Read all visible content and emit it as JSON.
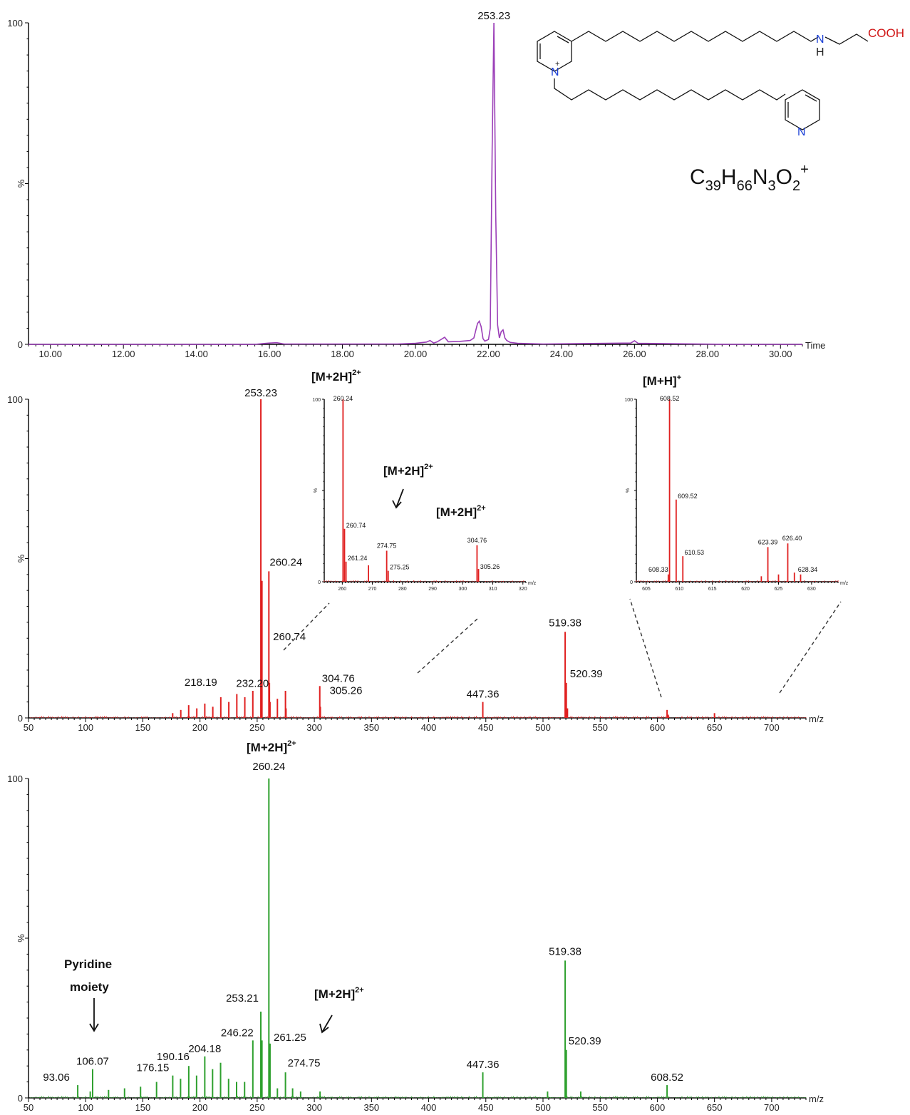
{
  "chart_data": [
    {
      "id": "tic",
      "type": "line",
      "title": "",
      "xlabel": "Time",
      "ylabel": "%",
      "xlim": [
        9.4,
        30.6
      ],
      "ylim": [
        0,
        100
      ],
      "x_ticks": [
        "10.00",
        "12.00",
        "14.00",
        "16.00",
        "18.00",
        "20.00",
        "22.00",
        "24.00",
        "26.00",
        "28.00",
        "30.00"
      ],
      "y_ticks": [
        "0",
        "100"
      ],
      "color": "#9b3fb8",
      "series": [
        {
          "x": [
            9.4,
            15.6,
            15.8,
            16.0,
            16.2,
            16.4,
            19.5,
            20.0,
            20.3,
            20.4,
            20.5,
            20.6,
            20.7,
            20.8,
            20.9,
            21.2,
            21.5,
            21.6,
            21.7,
            21.75,
            21.8,
            21.85,
            21.9,
            22.0,
            22.05,
            22.1,
            22.15,
            22.2,
            22.25,
            22.3,
            22.35,
            22.4,
            22.45,
            22.5,
            22.6,
            22.8,
            23.5,
            25.9,
            26.0,
            26.1,
            28.5,
            30.6
          ],
          "y": [
            0,
            0,
            0.2,
            0.4,
            0.5,
            0.1,
            0.1,
            0.3,
            0.7,
            1.2,
            0.4,
            0.8,
            1.5,
            2.2,
            0.8,
            0.9,
            1.2,
            2.0,
            6.5,
            7.2,
            5.5,
            1.8,
            1.0,
            1.5,
            5.0,
            60.0,
            100.0,
            40.0,
            6.0,
            2.0,
            4.0,
            4.5,
            2.0,
            1.2,
            0.6,
            0.3,
            0.1,
            0.4,
            1.1,
            0.3,
            0,
            0
          ]
        }
      ],
      "annotations": [
        {
          "x": 22.15,
          "label": "253.23"
        }
      ]
    },
    {
      "id": "ms1",
      "type": "bar",
      "title": "",
      "xlabel": "m/z",
      "ylabel": "%",
      "xlim": [
        50,
        730
      ],
      "ylim": [
        0,
        100
      ],
      "x_ticks": [
        "50",
        "100",
        "150",
        "200",
        "250",
        "300",
        "350",
        "400",
        "450",
        "500",
        "550",
        "600",
        "650",
        "700"
      ],
      "y_ticks": [
        "0",
        "100"
      ],
      "color": "#e02020",
      "x": [
        176.1,
        183.2,
        190.1,
        197.2,
        204.2,
        211.2,
        218.19,
        225.2,
        232.2,
        239.2,
        246.2,
        253.23,
        254.2,
        260.24,
        260.74,
        261.24,
        267.7,
        274.75,
        275.25,
        304.76,
        305.26,
        447.36,
        519.38,
        520.39,
        521.4,
        608.52,
        609.5,
        650.0
      ],
      "y": [
        1.5,
        2.5,
        4,
        3,
        4.5,
        3.5,
        6.5,
        5,
        7.5,
        6.5,
        8.5,
        100,
        43,
        46,
        11,
        5,
        6,
        8.5,
        3,
        10,
        3.5,
        5,
        27,
        11,
        3,
        2.5,
        1,
        1.5
      ],
      "labels": [
        {
          "x": 253.23,
          "text": "253.23"
        },
        {
          "x": 260.24,
          "text": "260.24"
        },
        {
          "x": 260.74,
          "text": "260.74"
        },
        {
          "x": 218.19,
          "text": "218.19"
        },
        {
          "x": 232.2,
          "text": "232.20"
        },
        {
          "x": 304.76,
          "text": "304.76"
        },
        {
          "x": 305.26,
          "text": "305.26"
        },
        {
          "x": 447.36,
          "text": "447.36"
        },
        {
          "x": 519.38,
          "text": "519.38"
        },
        {
          "x": 520.39,
          "text": "520.39"
        }
      ]
    },
    {
      "id": "inset1",
      "type": "bar",
      "title": "[M+2H]2+",
      "xlabel": "m/z",
      "ylabel": "%",
      "xlim": [
        254,
        321
      ],
      "ylim": [
        0,
        100
      ],
      "x_ticks": [
        "260",
        "270",
        "280",
        "290",
        "300",
        "310",
        "320"
      ],
      "y_ticks": [
        "0",
        "100"
      ],
      "color": "#e02020",
      "x": [
        260.24,
        260.74,
        261.24,
        268.7,
        274.75,
        275.25,
        304.76,
        305.26
      ],
      "y": [
        100,
        29,
        11,
        9,
        17,
        6,
        20,
        7
      ],
      "labels": [
        {
          "x": 260.24,
          "text": "260.24"
        },
        {
          "x": 260.74,
          "text": "260.74"
        },
        {
          "x": 261.24,
          "text": "261.24"
        },
        {
          "x": 274.75,
          "text": "274.75"
        },
        {
          "x": 275.25,
          "text": "275.25"
        },
        {
          "x": 304.76,
          "text": "304.76"
        },
        {
          "x": 305.26,
          "text": "305.26"
        }
      ]
    },
    {
      "id": "inset2",
      "type": "bar",
      "title": "[M+H]+",
      "xlabel": "m/z",
      "ylabel": "%",
      "xlim": [
        603.5,
        634
      ],
      "ylim": [
        0,
        100
      ],
      "x_ticks": [
        "605",
        "610",
        "615",
        "620",
        "625",
        "630"
      ],
      "y_ticks": [
        "0",
        "100"
      ],
      "color": "#e02020",
      "x": [
        608.33,
        608.52,
        609.52,
        610.53,
        622.4,
        623.39,
        625.0,
        626.4,
        627.4,
        628.34
      ],
      "y": [
        4,
        100,
        45,
        14,
        3,
        19,
        4,
        21,
        5,
        4
      ],
      "labels": [
        {
          "x": 608.33,
          "text": "608.33"
        },
        {
          "x": 608.52,
          "text": "608.52"
        },
        {
          "x": 609.52,
          "text": "609.52"
        },
        {
          "x": 610.53,
          "text": "610.53"
        },
        {
          "x": 623.39,
          "text": "623.39"
        },
        {
          "x": 626.4,
          "text": "626.40"
        },
        {
          "x": 628.34,
          "text": "628.34"
        }
      ]
    },
    {
      "id": "ms2",
      "type": "bar",
      "title": "",
      "xlabel": "m/z",
      "ylabel": "%",
      "xlim": [
        50,
        730
      ],
      "ylim": [
        0,
        100
      ],
      "x_ticks": [
        "50",
        "100",
        "150",
        "200",
        "250",
        "300",
        "350",
        "400",
        "450",
        "500",
        "550",
        "600",
        "650",
        "700"
      ],
      "y_ticks": [
        "0",
        "100"
      ],
      "color": "#2ea02e",
      "x": [
        93.06,
        104.0,
        106.07,
        120.0,
        134.0,
        148.0,
        162.0,
        176.15,
        183.0,
        190.16,
        197.0,
        204.18,
        211.0,
        218.0,
        225.0,
        232.0,
        239.0,
        246.22,
        253.21,
        254.2,
        260.24,
        260.74,
        261.25,
        267.7,
        274.75,
        281.0,
        288.0,
        305.0,
        447.36,
        504.0,
        519.38,
        520.39,
        533.0,
        608.52
      ],
      "y": [
        4,
        2,
        9,
        2.5,
        3,
        3.5,
        5,
        7,
        6,
        10,
        7,
        13,
        9,
        11,
        6,
        5,
        5,
        18,
        27,
        18,
        100,
        17,
        17,
        3,
        8,
        3,
        2,
        2,
        8,
        2,
        43,
        15,
        2,
        4
      ],
      "labels": [
        {
          "x": 260.24,
          "text": "260.24"
        },
        {
          "x": 253.21,
          "text": "253.21"
        },
        {
          "x": 246.22,
          "text": "246.22"
        },
        {
          "x": 261.25,
          "text": "261.25"
        },
        {
          "x": 274.75,
          "text": "274.75"
        },
        {
          "x": 204.18,
          "text": "204.18"
        },
        {
          "x": 190.16,
          "text": "190.16"
        },
        {
          "x": 176.15,
          "text": "176.15"
        },
        {
          "x": 106.07,
          "text": "106.07"
        },
        {
          "x": 93.06,
          "text": "93.06"
        },
        {
          "x": 447.36,
          "text": "447.36"
        },
        {
          "x": 519.38,
          "text": "519.38"
        },
        {
          "x": 520.39,
          "text": "520.39"
        },
        {
          "x": 608.52,
          "text": "608.52"
        }
      ]
    }
  ],
  "annotations": {
    "formula": {
      "C": "C",
      "c_sub": "39",
      "H": "H",
      "h_sub": "66",
      "N": "N",
      "n_sub": "3",
      "O": "O",
      "o_sub": "2",
      "charge": "+"
    },
    "structure": {
      "n_plus": "N",
      "plus": "+",
      "n_pyr": "N",
      "nh_n": "N",
      "nh_h": "H",
      "cooh": "COOH"
    },
    "ms1_ion": {
      "base": "[M+2H]",
      "charge": "2+"
    },
    "ms1_inset_ion_a": {
      "base": "[M+2H]",
      "charge": "2+"
    },
    "ms1_inset_ion_b": {
      "base": "[M+2H]",
      "charge": "2+"
    },
    "ms1_inset2_ion": {
      "base": "[M+H]",
      "charge": "+"
    },
    "ms2_ion_top": {
      "base": "[M+2H]",
      "charge": "2+"
    },
    "ms2_ion_arrow": {
      "base": "[M+2H]",
      "charge": "2+"
    },
    "pyridine": {
      "line1": "Pyridine",
      "line2": "moiety"
    }
  },
  "colors": {
    "tic": "#9b3fb8",
    "ms1": "#e02020",
    "ms2": "#2ea02e",
    "n_blue": "#1a3fd6",
    "cooh_red": "#d01515"
  }
}
